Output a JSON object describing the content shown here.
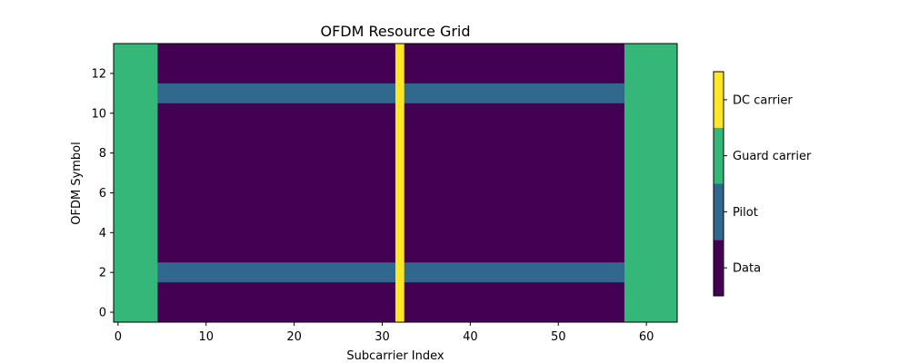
{
  "chart_data": {
    "type": "heatmap",
    "title": "OFDM Resource Grid",
    "xlabel": "Subcarrier Index",
    "ylabel": "OFDM Symbol",
    "xlim": [
      -0.5,
      63.5
    ],
    "ylim": [
      -0.5,
      13.5
    ],
    "x_ticks": [
      0,
      10,
      20,
      30,
      40,
      50,
      60
    ],
    "y_ticks": [
      0,
      2,
      4,
      6,
      8,
      10,
      12
    ],
    "grid": false,
    "colorbar": {
      "placement": "right",
      "categories": [
        {
          "label": "Data",
          "value": 0,
          "color": "#440154"
        },
        {
          "label": "Pilot",
          "value": 1,
          "color": "#31688e"
        },
        {
          "label": "Guard carrier",
          "value": 2,
          "color": "#35b779"
        },
        {
          "label": "DC carrier",
          "value": 3,
          "color": "#fde725"
        }
      ]
    },
    "grid_size": {
      "subcarriers": 64,
      "symbols": 14
    },
    "regions": [
      {
        "type": "Data",
        "subcarriers": [
          0,
          63
        ],
        "symbols": [
          0,
          13
        ]
      },
      {
        "type": "Pilot",
        "subcarriers": [
          5,
          57
        ],
        "symbols": [
          2,
          2
        ]
      },
      {
        "type": "Pilot",
        "subcarriers": [
          5,
          57
        ],
        "symbols": [
          11,
          11
        ]
      },
      {
        "type": "Guard carrier",
        "subcarriers": [
          0,
          4
        ],
        "symbols": [
          0,
          13
        ]
      },
      {
        "type": "Guard carrier",
        "subcarriers": [
          58,
          63
        ],
        "symbols": [
          0,
          13
        ]
      },
      {
        "type": "DC carrier",
        "subcarriers": [
          32,
          32
        ],
        "symbols": [
          0,
          13
        ]
      }
    ]
  }
}
